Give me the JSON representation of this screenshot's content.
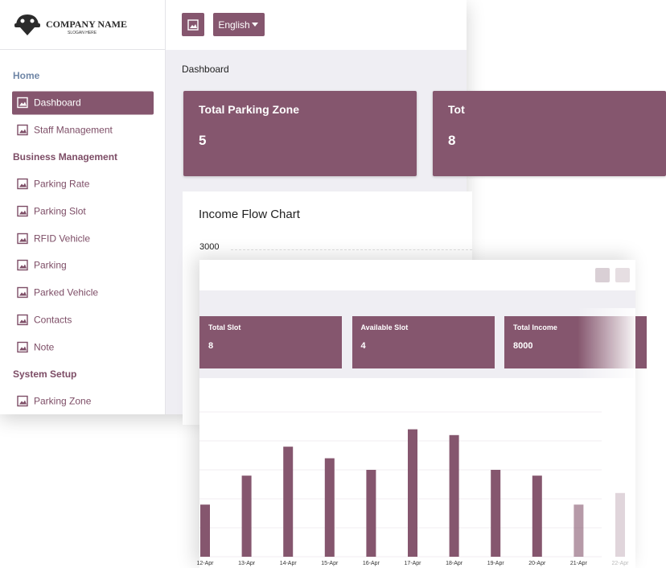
{
  "logo": {
    "title": "COMPANY NAME",
    "slogan": "SLOGAN HERE"
  },
  "header": {
    "language": "English"
  },
  "sidebar": {
    "sections": [
      {
        "title": "Home",
        "items": [
          "Dashboard",
          "Staff Management"
        ]
      },
      {
        "title": "Business Management",
        "items": [
          "Parking Rate",
          "Parking Slot",
          "RFID Vehicle",
          "Parking",
          "Parked Vehicle",
          "Contacts",
          "Note"
        ]
      },
      {
        "title": "System Setup",
        "items": [
          "Parking Zone"
        ]
      }
    ]
  },
  "breadcrumb": "Dashboard",
  "cards": [
    {
      "title": "Total Parking Zone",
      "value": 5
    },
    {
      "title": "Tot",
      "value": 8
    }
  ],
  "income_chart": {
    "title": "Income Flow Chart",
    "top_label": 3000
  },
  "overlay": {
    "cards": [
      {
        "title": "Total Slot",
        "value": 8
      },
      {
        "title": "Available Slot",
        "value": 4
      },
      {
        "title": "Total Income",
        "value": 8000
      }
    ]
  },
  "chart_data": {
    "type": "bar",
    "categories": [
      "12-Apr",
      "13-Apr",
      "14-Apr",
      "15-Apr",
      "16-Apr",
      "17-Apr",
      "18-Apr",
      "19-Apr",
      "20-Apr",
      "21-Apr",
      "22-Apr"
    ],
    "values": [
      450,
      700,
      950,
      850,
      750,
      1100,
      1050,
      750,
      700,
      450,
      550
    ],
    "color": "#85566e",
    "ylim": [
      0,
      1250
    ],
    "yticks": [
      0,
      250,
      500,
      750,
      1000,
      1250
    ],
    "grid": true
  }
}
